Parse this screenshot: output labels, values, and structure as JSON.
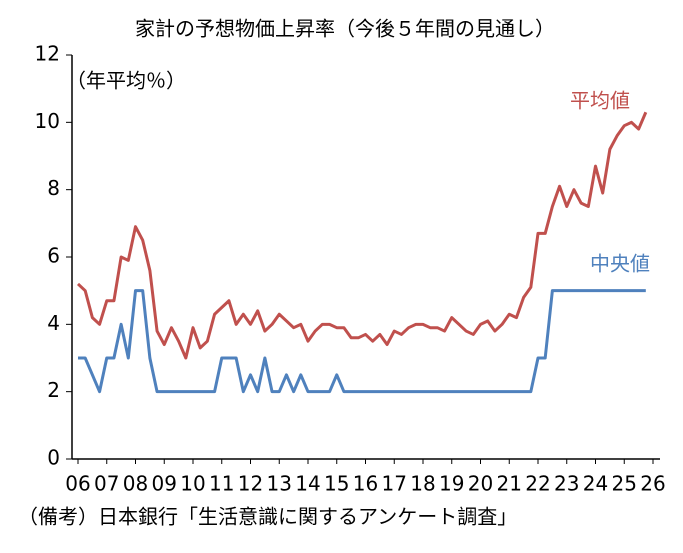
{
  "chart_data": {
    "type": "line",
    "title": "家計の予想物価上昇率（今後５年間の見通し）",
    "y_label": "（年平均％）",
    "note": "（備考）日本銀行「生活意識に関するアンケート調査」",
    "x": [
      2006,
      2006.25,
      2006.5,
      2006.75,
      2007,
      2007.25,
      2007.5,
      2007.75,
      2008,
      2008.25,
      2008.5,
      2008.75,
      2009,
      2009.25,
      2009.5,
      2009.75,
      2010,
      2010.25,
      2010.5,
      2010.75,
      2011,
      2011.25,
      2011.5,
      2011.75,
      2012,
      2012.25,
      2012.5,
      2012.75,
      2013,
      2013.25,
      2013.5,
      2013.75,
      2014,
      2014.25,
      2014.5,
      2014.75,
      2015,
      2015.25,
      2015.5,
      2015.75,
      2016,
      2016.25,
      2016.5,
      2016.75,
      2017,
      2017.25,
      2017.5,
      2017.75,
      2018,
      2018.25,
      2018.5,
      2018.75,
      2019,
      2019.25,
      2019.5,
      2019.75,
      2020,
      2020.25,
      2020.5,
      2020.75,
      2021,
      2021.25,
      2021.5,
      2021.75,
      2022,
      2022.25,
      2022.5,
      2022.75,
      2023,
      2023.25,
      2023.5,
      2023.75,
      2024,
      2024.25,
      2024.5,
      2024.75,
      2025,
      2025.25,
      2025.5,
      2025.75
    ],
    "series": [
      {
        "name": "平均値",
        "color": "#c0504d",
        "values": [
          5.2,
          5.0,
          4.2,
          4.0,
          4.7,
          4.7,
          6.0,
          5.9,
          6.9,
          6.5,
          5.6,
          3.8,
          3.4,
          3.9,
          3.5,
          3.0,
          3.9,
          3.3,
          3.5,
          4.3,
          4.5,
          4.7,
          4.0,
          4.3,
          4.0,
          4.4,
          3.8,
          4.0,
          4.3,
          4.1,
          3.9,
          4.0,
          3.5,
          3.8,
          4.0,
          4.0,
          3.9,
          3.9,
          3.6,
          3.6,
          3.7,
          3.5,
          3.7,
          3.4,
          3.8,
          3.7,
          3.9,
          4.0,
          4.0,
          3.9,
          3.9,
          3.8,
          4.2,
          4.0,
          3.8,
          3.7,
          4.0,
          4.1,
          3.8,
          4.0,
          4.3,
          4.2,
          4.8,
          5.1,
          6.7,
          6.7,
          7.5,
          8.1,
          7.5,
          8.0,
          7.6,
          7.5,
          8.7,
          7.9,
          9.2,
          9.6,
          9.9,
          10.0,
          9.8,
          10.3
        ]
      },
      {
        "name": "中央値",
        "color": "#4f81bd",
        "values": [
          3,
          3,
          2.5,
          2,
          3,
          3,
          4,
          3,
          5,
          5,
          3,
          2,
          2,
          2,
          2,
          2,
          2,
          2,
          2,
          2,
          3,
          3,
          3,
          2,
          2.5,
          2,
          3,
          2,
          2,
          2.5,
          2,
          2.5,
          2,
          2,
          2,
          2,
          2.5,
          2,
          2,
          2,
          2,
          2,
          2,
          2,
          2,
          2,
          2,
          2,
          2,
          2,
          2,
          2,
          2,
          2,
          2,
          2,
          2,
          2,
          2,
          2,
          2,
          2,
          2,
          2,
          3,
          3,
          5,
          5,
          5,
          5,
          5,
          5,
          5,
          5,
          5,
          5,
          5,
          5,
          5,
          5
        ]
      }
    ],
    "xlim": [
      2006,
      2026
    ],
    "xticks": [
      {
        "value": 2006,
        "label": "06"
      },
      {
        "value": 2007,
        "label": "07"
      },
      {
        "value": 2008,
        "label": "08"
      },
      {
        "value": 2009,
        "label": "09"
      },
      {
        "value": 2010,
        "label": "10"
      },
      {
        "value": 2011,
        "label": "11"
      },
      {
        "value": 2012,
        "label": "12"
      },
      {
        "value": 2013,
        "label": "13"
      },
      {
        "value": 2014,
        "label": "14"
      },
      {
        "value": 2015,
        "label": "15"
      },
      {
        "value": 2016,
        "label": "16"
      },
      {
        "value": 2017,
        "label": "17"
      },
      {
        "value": 2018,
        "label": "18"
      },
      {
        "value": 2019,
        "label": "19"
      },
      {
        "value": 2020,
        "label": "20"
      },
      {
        "value": 2021,
        "label": "21"
      },
      {
        "value": 2022,
        "label": "22"
      },
      {
        "value": 2023,
        "label": "23"
      },
      {
        "value": 2024,
        "label": "24"
      },
      {
        "value": 2025,
        "label": "25"
      },
      {
        "value": 2026,
        "label": "26"
      }
    ],
    "ylim": [
      0,
      12
    ],
    "yticks": [
      0,
      2,
      4,
      6,
      8,
      10,
      12
    ],
    "grid": false
  }
}
